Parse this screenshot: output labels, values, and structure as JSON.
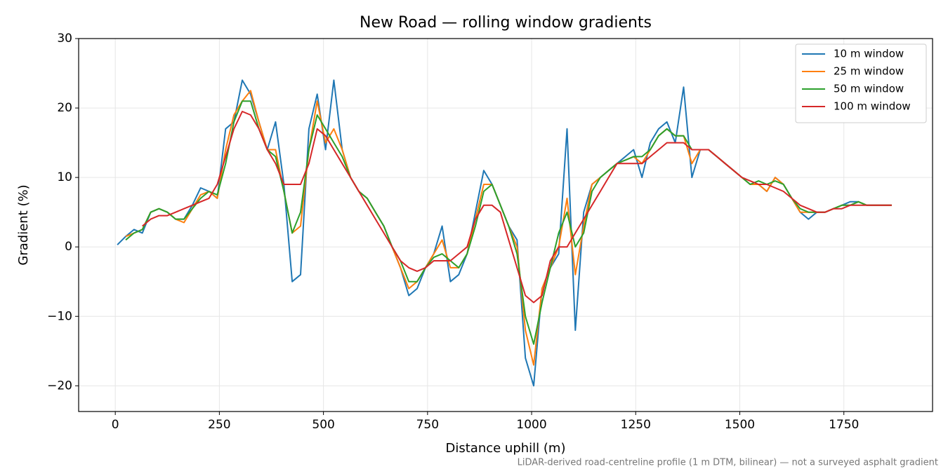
{
  "chart_data": {
    "type": "line",
    "title": "New Road — rolling window gradients",
    "x_label": "Distance uphill (m)",
    "y_label": "Gradient (%)",
    "annotation": "LiDAR-derived road-centreline profile (1 m DTM, bilinear) — not a surveyed asphalt gradient",
    "grid": true,
    "legend": "upper right",
    "xlim": [
      -88,
      1963
    ],
    "ylim": [
      -23.7,
      30
    ],
    "xticks": [
      0,
      250,
      500,
      750,
      1000,
      1250,
      1500,
      1750
    ],
    "yticks": [
      {
        "value": -20,
        "label": "−20"
      },
      {
        "value": -10,
        "label": "−10"
      },
      0,
      10,
      20,
      30
    ],
    "x": [
      5,
      25,
      45,
      65,
      85,
      105,
      125,
      145,
      165,
      185,
      205,
      225,
      245,
      265,
      285,
      305,
      325,
      345,
      365,
      385,
      405,
      425,
      445,
      465,
      485,
      505,
      525,
      545,
      565,
      585,
      605,
      625,
      645,
      665,
      685,
      705,
      725,
      745,
      765,
      785,
      805,
      825,
      845,
      865,
      885,
      905,
      925,
      945,
      965,
      985,
      1005,
      1025,
      1045,
      1065,
      1085,
      1105,
      1125,
      1145,
      1165,
      1185,
      1205,
      1225,
      1245,
      1265,
      1285,
      1305,
      1325,
      1345,
      1365,
      1385,
      1405,
      1425,
      1445,
      1465,
      1485,
      1505,
      1525,
      1545,
      1565,
      1585,
      1605,
      1625,
      1645,
      1665,
      1685,
      1705,
      1725,
      1745,
      1765,
      1785,
      1805,
      1825,
      1845,
      1865
    ],
    "series": [
      {
        "name": "10 m window",
        "color": "#1f77b4",
        "values": [
          0.3,
          1.5,
          2.5,
          2,
          5,
          5.5,
          5,
          4,
          4,
          6,
          8.5,
          8,
          7,
          17,
          18,
          24,
          22,
          18,
          14,
          18,
          9,
          -5,
          -4,
          17,
          22,
          14,
          24,
          14,
          10,
          8,
          7,
          5,
          3,
          0,
          -3,
          -7,
          -6,
          -3,
          -1,
          3,
          -5,
          -4,
          -1,
          5,
          11,
          9,
          6,
          3,
          1,
          -16,
          -20,
          -6,
          -3,
          -1,
          17,
          -12,
          5,
          9,
          10,
          11,
          12,
          13,
          14,
          10,
          15,
          17,
          18,
          15,
          23,
          10,
          14,
          14,
          13,
          12,
          11,
          10,
          9,
          9,
          8,
          10,
          9,
          7,
          5,
          4,
          5,
          5,
          5.5,
          6,
          6.5,
          6.5,
          6,
          6,
          6,
          6
        ]
      },
      {
        "name": "25 m window",
        "color": "#ff7f0e",
        "values": [
          null,
          1.5,
          2,
          2.5,
          5,
          5.5,
          5,
          4,
          3.5,
          5.5,
          7.5,
          8,
          7,
          14,
          19,
          21,
          22.5,
          18,
          14,
          14,
          8,
          2,
          3,
          14,
          21,
          15,
          17,
          14,
          10,
          8,
          7,
          5,
          3,
          0,
          -3,
          -6,
          -5,
          -3,
          -1,
          1,
          -3,
          -3,
          -1,
          4,
          9,
          9,
          6,
          3,
          0,
          -12,
          -17,
          -6,
          -3,
          0,
          7,
          -4,
          3,
          9,
          10,
          11,
          12,
          12.5,
          13,
          12,
          14,
          16,
          17,
          16,
          16,
          12,
          14,
          14,
          13,
          12,
          11,
          10,
          9,
          9,
          8,
          10,
          9,
          7,
          5,
          5,
          5,
          5,
          5.5,
          6,
          6,
          6.5,
          6,
          6,
          6,
          6
        ]
      },
      {
        "name": "50 m window",
        "color": "#2ca02c",
        "values": [
          null,
          1,
          2,
          2.5,
          5,
          5.5,
          5,
          4,
          4,
          5.5,
          7,
          8,
          7.5,
          12,
          18,
          21,
          21,
          17,
          14,
          13,
          8,
          2,
          5,
          14,
          19,
          17,
          15,
          13,
          10,
          8,
          7,
          5,
          3,
          0,
          -2,
          -5,
          -5,
          -3,
          -1.5,
          -1,
          -2,
          -3,
          -1,
          3,
          8,
          9,
          6,
          3,
          -1,
          -10,
          -14,
          -8,
          -3,
          2,
          5,
          0,
          2,
          8,
          10,
          11,
          12,
          12.5,
          13,
          13,
          14,
          16,
          17,
          16,
          16,
          14,
          14,
          14,
          13,
          12,
          11,
          10,
          9,
          9.5,
          9,
          9.5,
          9,
          7,
          5.5,
          5,
          5,
          5,
          5.5,
          6,
          6,
          6.5,
          6,
          6,
          6,
          6
        ]
      },
      {
        "name": "100 m window",
        "color": "#d62728",
        "values": [
          null,
          null,
          null,
          3,
          4,
          4.5,
          4.5,
          5,
          5.5,
          6,
          6.5,
          7,
          9,
          13,
          17,
          19.5,
          19,
          17,
          14,
          12,
          9,
          9,
          9,
          12,
          17,
          16,
          14,
          12,
          10,
          8,
          6,
          4,
          2,
          0,
          -2,
          -3,
          -3.5,
          -3,
          -2,
          -2,
          -2,
          -1,
          0,
          4,
          6,
          6,
          5,
          1,
          -3,
          -7,
          -8,
          -7,
          -2,
          0,
          0,
          2,
          4,
          6,
          8,
          10,
          12,
          12,
          12,
          12,
          13,
          14,
          15,
          15,
          15,
          14,
          14,
          14,
          13,
          12,
          11,
          10,
          9.5,
          9,
          9,
          8.5,
          8,
          7,
          6,
          5.5,
          5,
          5,
          5.5,
          5.5,
          6,
          6,
          6,
          6,
          6,
          6
        ]
      }
    ]
  }
}
